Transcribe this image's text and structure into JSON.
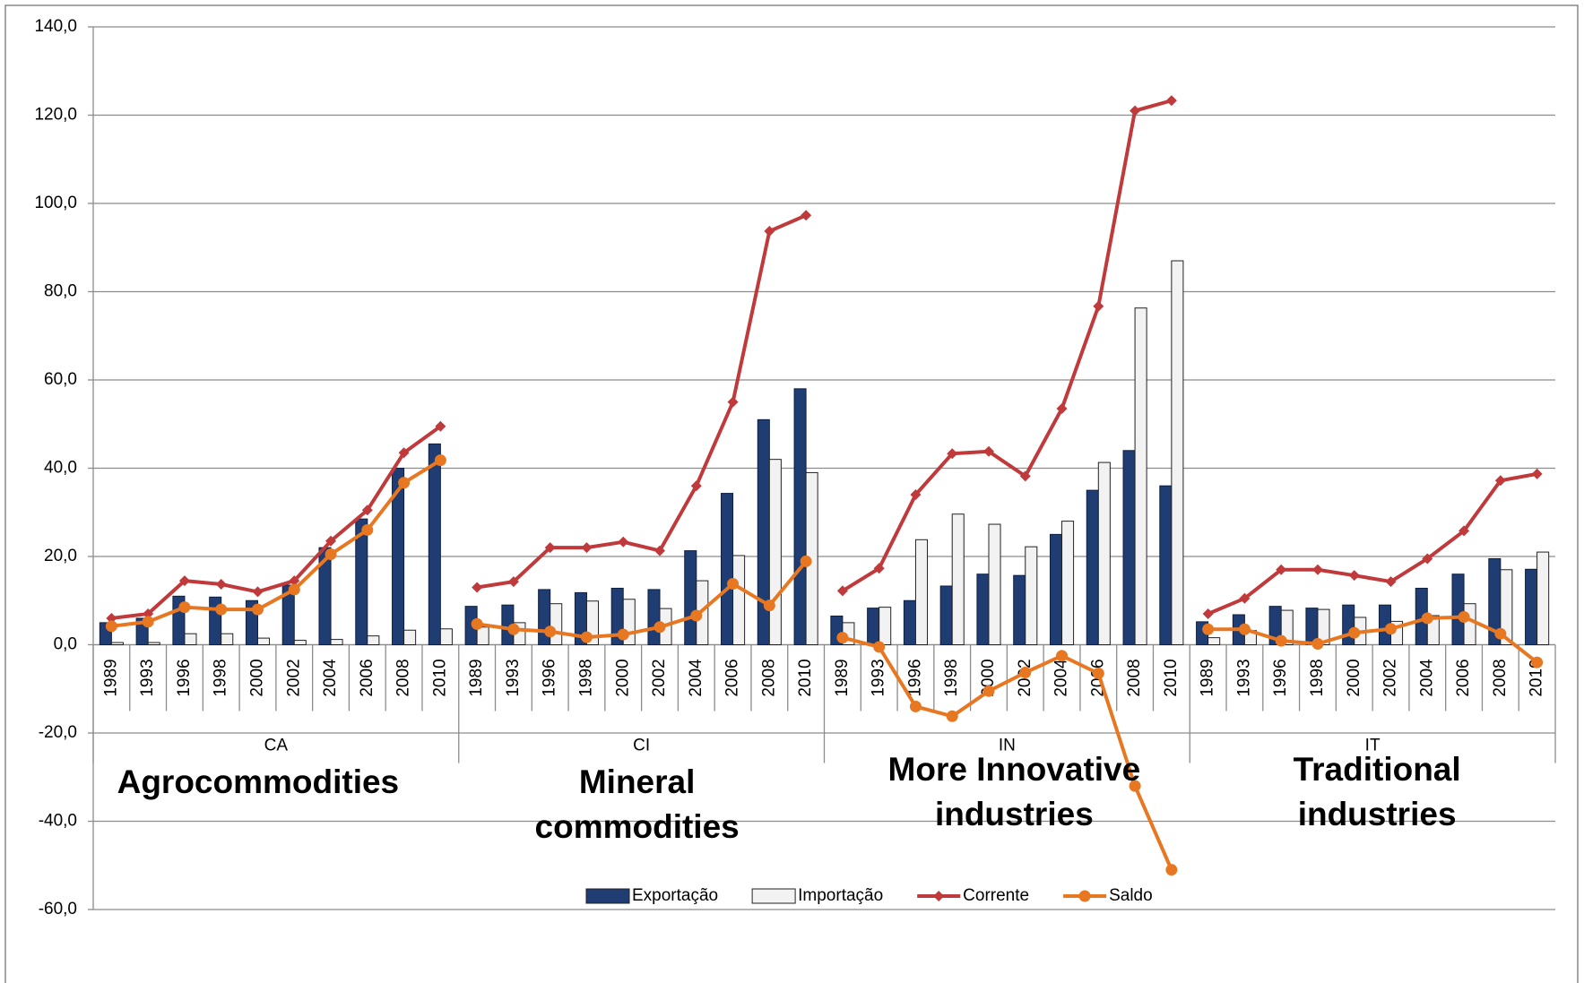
{
  "chart_data": {
    "type": "bar",
    "categories": [
      "1989",
      "1993",
      "1996",
      "1998",
      "2000",
      "2002",
      "2004",
      "2006",
      "2008",
      "2010",
      "1989",
      "1993",
      "1996",
      "1998",
      "2000",
      "2002",
      "2004",
      "2006",
      "2008",
      "2010",
      "1989",
      "1993",
      "1996",
      "1998",
      "2000",
      "2002",
      "2004",
      "2006",
      "2008",
      "2010",
      "1989",
      "1993",
      "1996",
      "1998",
      "2000",
      "2002",
      "2004",
      "2006",
      "2008",
      "2010"
    ],
    "groups": [
      {
        "label": "CA",
        "annotation": "Agrocommodities"
      },
      {
        "label": "CI",
        "annotation": "Mineral commodities"
      },
      {
        "label": "IN",
        "annotation": "More Innovative industries"
      },
      {
        "label": "IT",
        "annotation": "Traditional industries"
      }
    ],
    "series": [
      {
        "name": "Exportação",
        "type": "bar",
        "color": "#1f3d73",
        "values": [
          5,
          6,
          11,
          10.8,
          10,
          13.5,
          22,
          28.5,
          40,
          45.5,
          8.7,
          9,
          12.5,
          11.8,
          12.8,
          12.5,
          21.3,
          34.3,
          51,
          58,
          6.5,
          8.3,
          10,
          13.3,
          16,
          15.7,
          25,
          35,
          44,
          36,
          5.2,
          6.8,
          8.7,
          8.3,
          9,
          9,
          12.8,
          16,
          19.5,
          17.1
        ]
      },
      {
        "name": "Importação",
        "type": "bar",
        "color": "#f2f2f2",
        "values": [
          0.5,
          0.5,
          2.5,
          2.5,
          1.5,
          1,
          1.2,
          2,
          3.3,
          3.6,
          4,
          5,
          9.3,
          9.9,
          10.3,
          8.2,
          14.5,
          20.2,
          42,
          39,
          5,
          8.5,
          23.8,
          29.6,
          27.3,
          22.2,
          28,
          41.3,
          76.3,
          87,
          1.6,
          3.2,
          7.8,
          8,
          6.2,
          5.3,
          6.6,
          9.3,
          17,
          21
        ]
      },
      {
        "name": "Corrente",
        "type": "line",
        "marker": "diamond",
        "color": "#c0393b",
        "values": [
          6,
          7,
          14.5,
          13.7,
          12,
          14.5,
          23.5,
          30.5,
          43.5,
          49.5,
          13,
          14.3,
          22,
          22,
          23.3,
          21.3,
          36,
          55,
          93.7,
          97.3,
          12.2,
          17.3,
          34,
          43.3,
          43.8,
          38.2,
          53.5,
          76.7,
          121,
          123.3,
          7,
          10.5,
          17,
          17,
          15.7,
          14.3,
          19.5,
          25.8,
          37.2,
          38.7
        ]
      },
      {
        "name": "Saldo",
        "type": "line",
        "marker": "circle",
        "color": "#e87722",
        "values": [
          4.2,
          5.2,
          8.5,
          8,
          8,
          12.5,
          20.5,
          26,
          36.7,
          41.8,
          4.7,
          3.5,
          3,
          1.7,
          2.3,
          4,
          6.6,
          13.8,
          8.9,
          18.9,
          1.6,
          -0.5,
          -14,
          -16.2,
          -10.5,
          -6.3,
          -2.5,
          -6.5,
          -32,
          -51,
          3.5,
          3.5,
          0.9,
          0.2,
          2.7,
          3.6,
          6,
          6.3,
          2.5,
          -4
        ]
      }
    ],
    "ylim": [
      -60,
      140
    ],
    "yticks": [
      {
        "value": -60,
        "label": "-60,0"
      },
      {
        "value": -40,
        "label": "-40,0"
      },
      {
        "value": -20,
        "label": "-20,0"
      },
      {
        "value": 0,
        "label": "0,0"
      },
      {
        "value": 20,
        "label": "20,0"
      },
      {
        "value": 40,
        "label": "40,0"
      },
      {
        "value": 60,
        "label": "60,0"
      },
      {
        "value": 80,
        "label": "80,0"
      },
      {
        "value": 100,
        "label": "100,0"
      },
      {
        "value": 120,
        "label": "120,0"
      },
      {
        "value": 140,
        "label": "140,0"
      }
    ],
    "grid": true,
    "legend": "bottom"
  }
}
